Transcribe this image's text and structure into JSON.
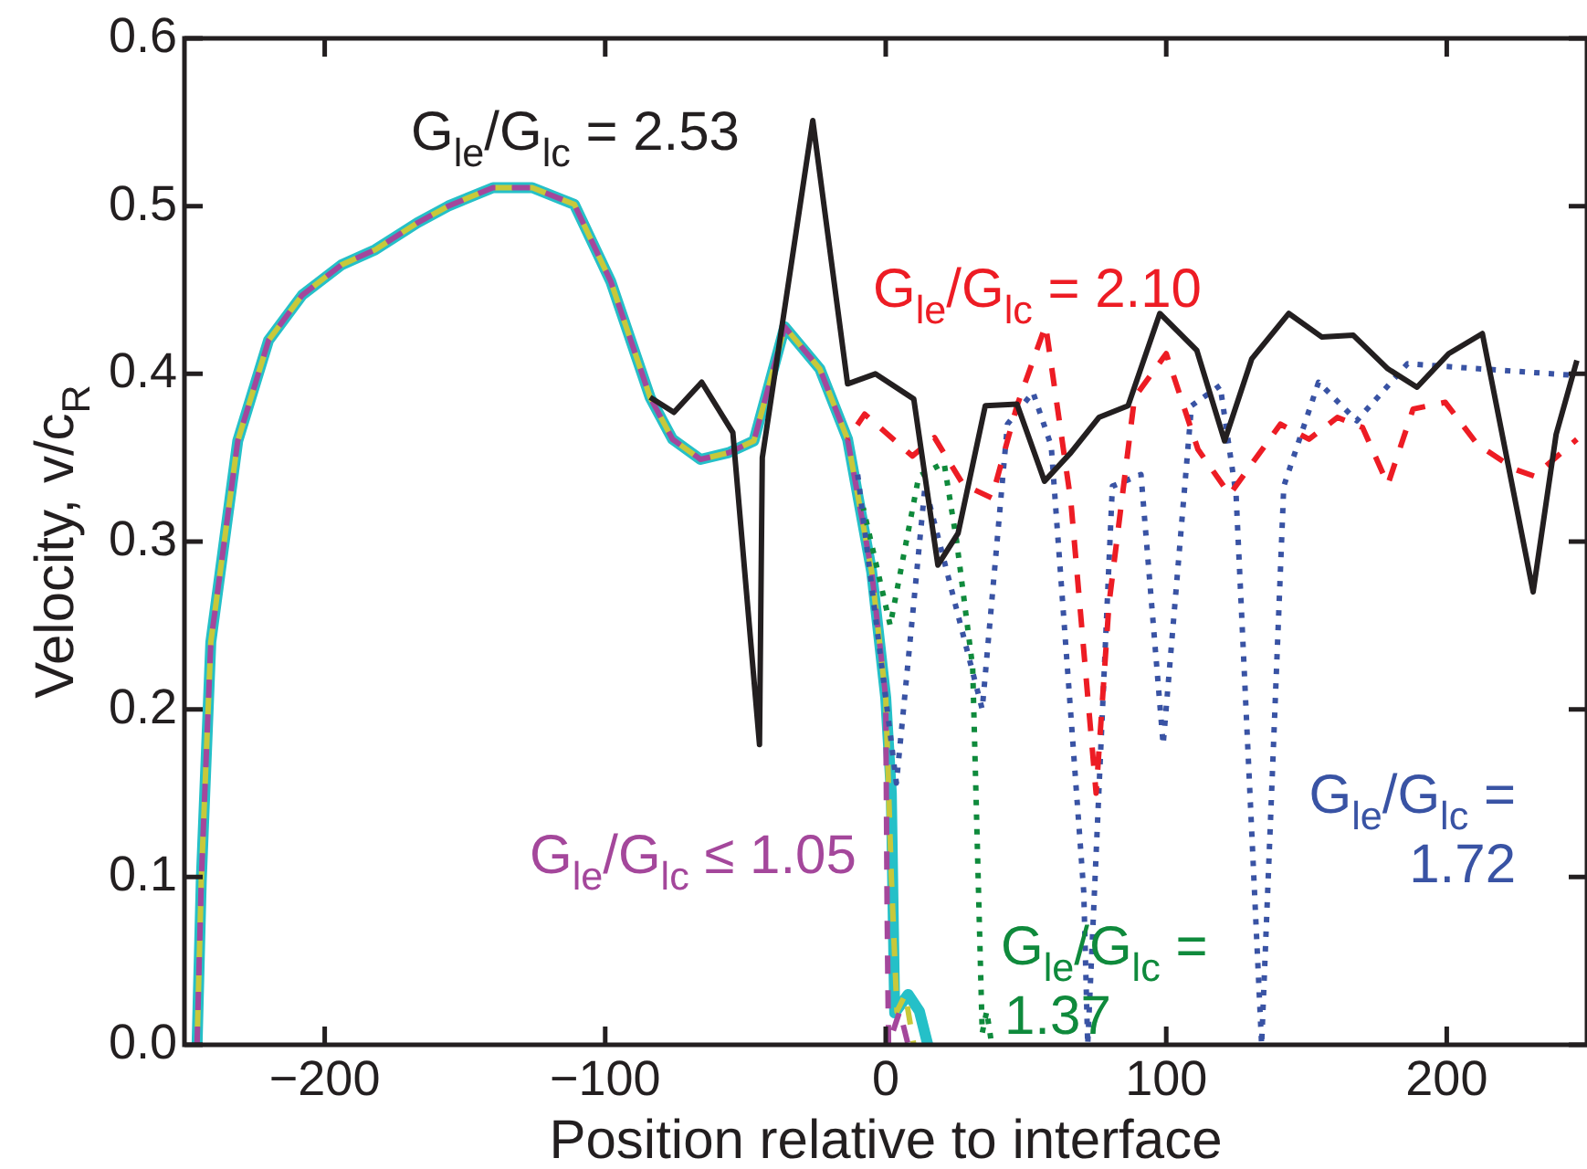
{
  "chart_data": {
    "type": "line",
    "xlabel": "Position relative to interface",
    "ylabel": "Velocity, v/c$_{R}$",
    "xlim": [
      -250,
      250
    ],
    "ylim": [
      0,
      0.6
    ],
    "xticks": [
      {
        "value": -200,
        "label": "−200"
      },
      {
        "value": -100,
        "label": "−100"
      },
      0,
      100,
      200
    ],
    "yticks": [
      {
        "value": 0,
        "label": "0.0"
      },
      0.1,
      0.2,
      0.3,
      0.4,
      0.5,
      0.6
    ],
    "series": [
      {
        "name": "G$_{le}$/G$_{lc}$ = 2.53",
        "color": "#231f20",
        "line_style": "solid",
        "x": [
          -84,
          -75.5,
          -65.6,
          -54.5,
          -45,
          -44,
          -26,
          -13.6,
          -3.7,
          10,
          18.6,
          25.8,
          35.5,
          46.8,
          56.6,
          66,
          76,
          86.4,
          97.7,
          110.9,
          120.8,
          130.5,
          143.7,
          155.4,
          166.7,
          179,
          189.4,
          200.7,
          212.7,
          230.8,
          239,
          246.4
        ],
        "values": [
          0.386,
          0.377,
          0.395,
          0.365,
          0.179,
          0.35,
          0.551,
          0.394,
          0.4,
          0.385,
          0.286,
          0.305,
          0.381,
          0.382,
          0.336,
          0.353,
          0.374,
          0.381,
          0.436,
          0.414,
          0.36,
          0.409,
          0.436,
          0.422,
          0.423,
          0.403,
          0.392,
          0.412,
          0.424,
          0.27,
          0.364,
          0.408
        ]
      },
      {
        "name": "G$_{le}$/G$_{lc}$ = 2.10",
        "color": "#ed1c24",
        "line_style": "dashed",
        "x": [
          -13.6,
          -7.5,
          9.5,
          17.4,
          27.6,
          37.8,
          46.8,
          57,
          66,
          75,
          79.6,
          88.7,
          100,
          111.3,
          122.6,
          140.7,
          150.9,
          161,
          170,
          179,
          188,
          199.5,
          210.9,
          224.4,
          231.2,
          246.4
        ],
        "values": [
          0.361,
          0.376,
          0.351,
          0.362,
          0.334,
          0.326,
          0.381,
          0.429,
          0.324,
          0.15,
          0.263,
          0.386,
          0.412,
          0.355,
          0.328,
          0.37,
          0.361,
          0.374,
          0.368,
          0.334,
          0.379,
          0.383,
          0.358,
          0.343,
          0.339,
          0.361
        ]
      },
      {
        "name": "G$_{le}$/G$_{lc}$ = 1.72",
        "color": "#3953a4",
        "line_style": "dotted",
        "x": [
          -10,
          3.8,
          14,
          34.4,
          43.4,
          52.5,
          59,
          70.6,
          72,
          80.8,
          91,
          98.9,
          109,
          119.2,
          124.9,
          134,
          141.9,
          154.3,
          167.9,
          186,
          246.4
        ],
        "values": [
          0.34,
          0.156,
          0.333,
          0.2,
          0.37,
          0.389,
          0.357,
          0.091,
          0,
          0.333,
          0.34,
          0.179,
          0.381,
          0.393,
          0.328,
          0,
          0.333,
          0.395,
          0.372,
          0.406,
          0.399
        ]
      },
      {
        "name": "G$_{le}$/G$_{lc}$ = 1.37",
        "color": "#0f8a3c",
        "line_style": "dotted",
        "x": [
          -8,
          1.6,
          11.8,
          20.8,
          25.3,
          31,
          34.4,
          36,
          37.8
        ],
        "values": [
          0.32,
          0.25,
          0.339,
          0.347,
          0.3,
          0.225,
          0.007,
          0.02,
          0
        ]
      },
      {
        "name": "G$_{le}$/G$_{lc}$ ≤ 1.05",
        "color": "#a4479b",
        "line_style": "dashed",
        "x": [
          -245.5,
          -244,
          -240.6,
          -231,
          -220,
          -208,
          -194,
          -182,
          -167,
          -156,
          -140,
          -126,
          -111,
          -98,
          -84,
          -76,
          -66,
          -56,
          -47,
          -36,
          -23.5,
          -13.6,
          -5,
          0,
          0.5,
          1,
          5,
          8
        ],
        "values": [
          0,
          0.098,
          0.24,
          0.36,
          0.42,
          0.447,
          0.465,
          0.474,
          0.49,
          0.5,
          0.511,
          0.511,
          0.501,
          0.455,
          0.386,
          0.361,
          0.349,
          0.353,
          0.36,
          0.428,
          0.403,
          0.361,
          0.282,
          0.207,
          0.08,
          0,
          0.02,
          0
        ]
      },
      {
        "color": "#c8c83a",
        "line_style": "dashed",
        "x": [
          -245.5,
          -244,
          -240.6,
          -231,
          -220,
          -208,
          -194,
          -182,
          -167,
          -156,
          -140,
          -126,
          -111,
          -98,
          -84,
          -76,
          -66,
          -56,
          -47,
          -36,
          -23.5,
          -13.6,
          -5,
          0,
          2,
          4,
          7,
          10
        ],
        "values": [
          0,
          0.098,
          0.24,
          0.36,
          0.42,
          0.447,
          0.465,
          0.474,
          0.49,
          0.5,
          0.511,
          0.511,
          0.501,
          0.455,
          0.386,
          0.361,
          0.349,
          0.353,
          0.36,
          0.428,
          0.403,
          0.361,
          0.282,
          0.207,
          0.1,
          0.02,
          0.03,
          0
        ]
      },
      {
        "color": "#25c0c8",
        "line_style": "solid",
        "x": [
          -245.5,
          -244,
          -240.6,
          -231,
          -220,
          -208,
          -194,
          -182,
          -167,
          -156,
          -140,
          -126,
          -111,
          -98,
          -84,
          -76,
          -66,
          -56,
          -47,
          -36,
          -23.5,
          -13.6,
          -5,
          0,
          2,
          3.2,
          8,
          12,
          15
        ],
        "values": [
          0,
          0.098,
          0.24,
          0.36,
          0.42,
          0.447,
          0.465,
          0.474,
          0.49,
          0.5,
          0.511,
          0.511,
          0.501,
          0.455,
          0.386,
          0.361,
          0.349,
          0.353,
          0.36,
          0.428,
          0.403,
          0.361,
          0.282,
          0.207,
          0.15,
          0.019,
          0.03,
          0.02,
          0
        ]
      }
    ]
  }
}
